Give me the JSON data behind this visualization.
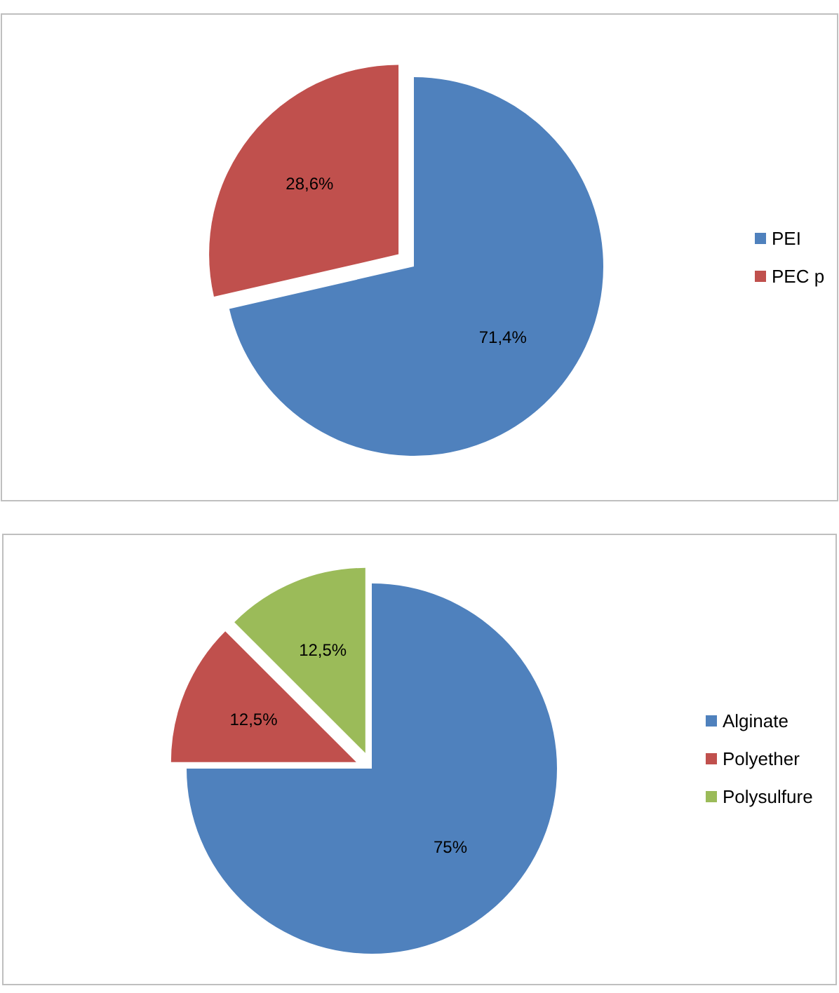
{
  "chart_data": [
    {
      "type": "pie",
      "categories": [
        "PEI",
        "PEC p"
      ],
      "values": [
        71.4,
        28.6
      ],
      "colors": [
        "#4f81bd",
        "#c0504d"
      ],
      "value_labels": [
        "71,4%",
        "28,6%"
      ],
      "legend": "right"
    },
    {
      "type": "pie",
      "categories": [
        "Alginate",
        "Polyether",
        "Polysulfure"
      ],
      "values": [
        75,
        12.5,
        12.5
      ],
      "colors": [
        "#4f81bd",
        "#c0504d",
        "#9bbb59"
      ],
      "value_labels": [
        "75%",
        "12,5%",
        "12,5%"
      ],
      "legend": "right"
    }
  ]
}
